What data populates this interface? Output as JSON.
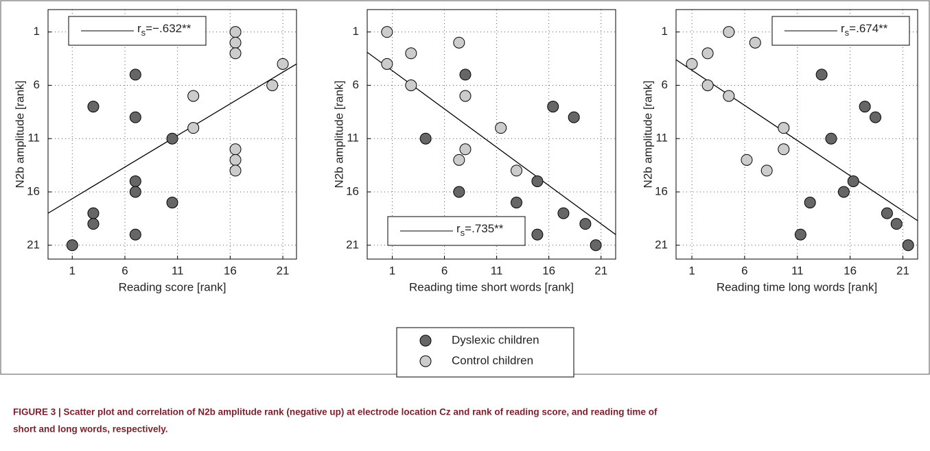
{
  "chart_data": [
    {
      "type": "scatter",
      "xlabel": "Reading score [rank]",
      "ylabel": "N2b amplitude [rank]",
      "xlim": [
        -1.3,
        22.3
      ],
      "ylim": [
        -1.1,
        22.3
      ],
      "y_inverted": true,
      "xticks": [
        1,
        6,
        11,
        16,
        21
      ],
      "yticks": [
        1,
        6,
        11,
        16,
        21
      ],
      "grid": true,
      "series": [
        {
          "name": "Dyslexic children",
          "color": "#666666",
          "x": [
            1,
            3,
            3,
            3,
            7,
            7,
            7,
            7,
            7,
            10.5,
            10.5
          ],
          "values": [
            21,
            8,
            18,
            19,
            5,
            9,
            15,
            16,
            20,
            11,
            17
          ]
        },
        {
          "name": "Control children",
          "color": "#cccccc",
          "x": [
            16.5,
            16.5,
            16.5,
            21,
            20,
            12.5,
            12.5,
            16.5,
            16.5,
            16.5
          ],
          "values": [
            1,
            2,
            3,
            4,
            6,
            7,
            10,
            12,
            13,
            14
          ]
        }
      ],
      "fit_line": {
        "x": [
          -1.3,
          22.3
        ],
        "y": [
          18,
          4
        ]
      },
      "annotation": {
        "symbol": "r",
        "subscript": "s",
        "text": "=−.632**"
      },
      "annotation_corner": "upper left"
    },
    {
      "type": "scatter",
      "xlabel": "Reading time short words [rank]",
      "ylabel": "N2b amplitude [rank]",
      "xlim": [
        -1.4,
        22.4
      ],
      "ylim": [
        -1.1,
        22.3
      ],
      "y_inverted": true,
      "xticks": [
        1,
        6,
        11,
        16,
        21
      ],
      "yticks": [
        1,
        6,
        11,
        16,
        21
      ],
      "grid": true,
      "series": [
        {
          "name": "Dyslexic children",
          "color": "#666666",
          "x": [
            4.2,
            8,
            7.4,
            12.9,
            14.9,
            14.9,
            16.4,
            18.4,
            17.4,
            19.5,
            20.5
          ],
          "values": [
            11,
            5,
            16,
            17,
            15,
            20,
            8,
            9,
            18,
            19,
            21
          ]
        },
        {
          "name": "Control children",
          "color": "#cccccc",
          "x": [
            0.5,
            0.5,
            2.8,
            2.8,
            8,
            8,
            7.4,
            7.4,
            11.4,
            12.9
          ],
          "values": [
            1,
            4,
            3,
            6,
            7,
            12,
            2,
            13,
            10,
            14
          ]
        }
      ],
      "fit_line": {
        "x": [
          -1.4,
          22.4
        ],
        "y": [
          2.9,
          20
        ]
      },
      "annotation": {
        "symbol": "r",
        "subscript": "s",
        "text": "=.735**"
      },
      "annotation_corner": "lower left"
    },
    {
      "type": "scatter",
      "xlabel": "Reading time long words [rank]",
      "ylabel": "N2b amplitude [rank]",
      "xlim": [
        -0.5,
        22.4
      ],
      "ylim": [
        -1.1,
        22.3
      ],
      "y_inverted": true,
      "xticks": [
        1,
        6,
        11,
        16,
        21
      ],
      "yticks": [
        1,
        6,
        11,
        16,
        21
      ],
      "grid": true,
      "series": [
        {
          "name": "Dyslexic children",
          "color": "#666666",
          "x": [
            13.3,
            17.4,
            18.4,
            14.2,
            16.3,
            15.4,
            12.2,
            11.3,
            19.5,
            20.4,
            21.5
          ],
          "values": [
            5,
            8,
            9,
            11,
            15,
            16,
            17,
            20,
            18,
            19,
            21
          ]
        },
        {
          "name": "Control children",
          "color": "#cccccc",
          "x": [
            1,
            2.5,
            2.5,
            4.5,
            4.5,
            7,
            9.7,
            9.7,
            6.2,
            8.1
          ],
          "values": [
            4,
            3,
            6,
            1,
            7,
            2,
            10,
            12,
            13,
            14
          ]
        }
      ],
      "fit_line": {
        "x": [
          -0.5,
          22.4
        ],
        "y": [
          3.6,
          18.7
        ]
      },
      "annotation": {
        "symbol": "r",
        "subscript": "s",
        "text": "=.674**"
      },
      "annotation_corner": "upper right"
    }
  ],
  "caption_lines": [
    "FIGURE 3 | Scatter plot and correlation of N2b amplitude rank (negative up) at electrode location Cz and rank of reading score, and reading time of",
    "short and long words, respectively."
  ]
}
